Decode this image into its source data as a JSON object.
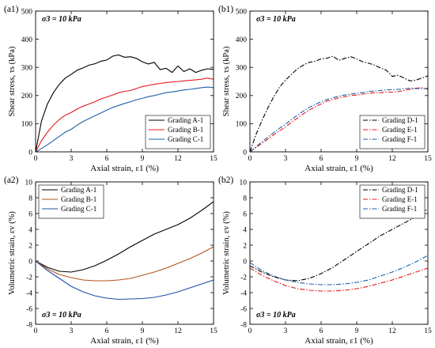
{
  "chart_data": [
    {
      "id": "a1",
      "type": "line",
      "panel_label": "(a1)",
      "annotation": "σ3 = 10 kPa",
      "xlabel": "Axial strain, ε1 (%)",
      "ylabel": "Shear stress, τs (kPa)",
      "xlim": [
        0,
        15
      ],
      "ylim": [
        0,
        500
      ],
      "xticks": [
        "0",
        "3",
        "6",
        "9",
        "12",
        "15"
      ],
      "yticks": [
        "0",
        "100",
        "200",
        "300",
        "400",
        "500"
      ],
      "legend_position": "bottom-right",
      "series": [
        {
          "name": "Grading A-1",
          "color": "#000000",
          "dash": "solid",
          "x": [
            0,
            0.5,
            1,
            1.5,
            2,
            2.5,
            3,
            3.5,
            4,
            4.5,
            5,
            5.5,
            6,
            6.5,
            7,
            7.5,
            8,
            8.5,
            9,
            9.5,
            10,
            10.5,
            11,
            11.5,
            12,
            12.5,
            13,
            13.5,
            14,
            14.5,
            15
          ],
          "y": [
            0,
            110,
            170,
            210,
            240,
            262,
            275,
            290,
            298,
            308,
            313,
            322,
            326,
            340,
            344,
            336,
            338,
            332,
            320,
            312,
            318,
            292,
            297,
            282,
            305,
            285,
            295,
            282,
            290,
            295,
            293
          ]
        },
        {
          "name": "Grading B-1",
          "color": "#e41a1c",
          "dash": "solid",
          "x": [
            0,
            0.5,
            1,
            1.5,
            2,
            2.5,
            3,
            3.5,
            4,
            4.5,
            5,
            5.5,
            6,
            6.5,
            7,
            7.5,
            8,
            8.5,
            9,
            9.5,
            10,
            10.5,
            11,
            11.5,
            12,
            12.5,
            13,
            13.5,
            14,
            14.5,
            15
          ],
          "y": [
            0,
            40,
            70,
            95,
            115,
            130,
            140,
            152,
            162,
            170,
            178,
            188,
            195,
            202,
            210,
            215,
            218,
            225,
            232,
            236,
            240,
            243,
            246,
            248,
            250,
            252,
            254,
            256,
            258,
            262,
            258
          ]
        },
        {
          "name": "Grading C-1",
          "color": "#1f5fa8",
          "dash": "solid",
          "x": [
            0,
            0.5,
            1,
            1.5,
            2,
            2.5,
            3,
            3.5,
            4,
            4.5,
            5,
            5.5,
            6,
            6.5,
            7,
            7.5,
            8,
            8.5,
            9,
            9.5,
            10,
            10.5,
            11,
            11.5,
            12,
            12.5,
            13,
            13.5,
            14,
            14.5,
            15
          ],
          "y": [
            0,
            12,
            25,
            40,
            55,
            70,
            80,
            95,
            108,
            118,
            128,
            138,
            148,
            158,
            165,
            172,
            178,
            185,
            190,
            196,
            200,
            205,
            210,
            213,
            216,
            220,
            222,
            225,
            228,
            230,
            228
          ]
        }
      ]
    },
    {
      "id": "b1",
      "type": "line",
      "panel_label": "(b1)",
      "annotation": "σ3 = 10 kPa",
      "xlabel": "Axial strain, ε1 (%)",
      "ylabel": "Shear stress, τs (kPa)",
      "xlim": [
        0,
        15
      ],
      "ylim": [
        0,
        500
      ],
      "xticks": [
        "0",
        "3",
        "6",
        "9",
        "12",
        "15"
      ],
      "yticks": [
        "0",
        "100",
        "200",
        "300",
        "400",
        "500"
      ],
      "legend_position": "bottom-right",
      "series": [
        {
          "name": "Grading D-1",
          "color": "#000000",
          "dash": "dashdot",
          "x": [
            0,
            0.5,
            1,
            1.5,
            2,
            2.5,
            3,
            3.5,
            4,
            4.5,
            5,
            5.5,
            6,
            6.5,
            7,
            7.5,
            8,
            8.5,
            9,
            9.5,
            10,
            10.5,
            11,
            11.5,
            12,
            12.5,
            13,
            13.5,
            14,
            14.5,
            15
          ],
          "y": [
            0,
            60,
            110,
            155,
            195,
            230,
            255,
            275,
            295,
            308,
            318,
            322,
            330,
            333,
            340,
            325,
            332,
            338,
            330,
            320,
            315,
            308,
            298,
            290,
            268,
            272,
            262,
            252,
            255,
            262,
            270
          ]
        },
        {
          "name": "Grading E-1",
          "color": "#e41a1c",
          "dash": "dashdot",
          "x": [
            0,
            0.5,
            1,
            1.5,
            2,
            2.5,
            3,
            3.5,
            4,
            4.5,
            5,
            5.5,
            6,
            6.5,
            7,
            7.5,
            8,
            8.5,
            9,
            9.5,
            10,
            10.5,
            11,
            11.5,
            12,
            12.5,
            13,
            13.5,
            14,
            14.5,
            15
          ],
          "y": [
            0,
            15,
            30,
            45,
            60,
            75,
            88,
            105,
            120,
            135,
            148,
            160,
            170,
            180,
            186,
            192,
            196,
            200,
            202,
            205,
            208,
            210,
            210,
            212,
            212,
            214,
            218,
            222,
            226,
            228,
            222
          ]
        },
        {
          "name": "Grading F-1",
          "color": "#1f5fa8",
          "dash": "dashdot",
          "x": [
            0,
            0.5,
            1,
            1.5,
            2,
            2.5,
            3,
            3.5,
            4,
            4.5,
            5,
            5.5,
            6,
            6.5,
            7,
            7.5,
            8,
            8.5,
            9,
            9.5,
            10,
            10.5,
            11,
            11.5,
            12,
            12.5,
            13,
            13.5,
            14,
            14.5,
            15
          ],
          "y": [
            0,
            18,
            35,
            52,
            68,
            84,
            98,
            115,
            130,
            145,
            158,
            168,
            178,
            186,
            192,
            198,
            202,
            205,
            208,
            211,
            214,
            216,
            218,
            220,
            221,
            222,
            224,
            226,
            225,
            224,
            226
          ]
        }
      ]
    },
    {
      "id": "a2",
      "type": "line",
      "panel_label": "(a2)",
      "annotation": "σ3 = 10 kPa",
      "xlabel": "Axial strain, ε1 (%)",
      "ylabel": "Volumetric strain, εv (%)",
      "xlim": [
        0,
        15
      ],
      "ylim": [
        -8,
        10
      ],
      "xticks": [
        "0",
        "3",
        "6",
        "9",
        "12",
        "15"
      ],
      "yticks": [
        "-8",
        "-6",
        "-4",
        "-2",
        "0",
        "2",
        "4",
        "6",
        "8",
        "10"
      ],
      "legend_position": "top-left",
      "series": [
        {
          "name": "Grading A-1",
          "color": "#000000",
          "dash": "solid",
          "x": [
            0,
            1,
            2,
            3,
            4,
            5,
            6,
            7,
            8,
            9,
            10,
            11,
            12,
            13,
            14,
            15
          ],
          "y": [
            0,
            -0.8,
            -1.3,
            -1.4,
            -1.1,
            -0.6,
            0.1,
            0.9,
            1.8,
            2.6,
            3.4,
            4.0,
            4.6,
            5.4,
            6.4,
            7.5
          ]
        },
        {
          "name": "Grading B-1",
          "color": "#b5531e",
          "dash": "solid",
          "x": [
            0,
            1,
            2,
            3,
            4,
            5,
            6,
            7,
            8,
            9,
            10,
            11,
            12,
            13,
            14,
            15
          ],
          "y": [
            0,
            -1.0,
            -1.7,
            -2.1,
            -2.4,
            -2.5,
            -2.5,
            -2.4,
            -2.2,
            -1.8,
            -1.4,
            -0.9,
            -0.3,
            0.3,
            1.0,
            1.8
          ]
        },
        {
          "name": "Grading C-1",
          "color": "#1f4fa8",
          "dash": "solid",
          "x": [
            0,
            1,
            2,
            3,
            4,
            5,
            6,
            7,
            8,
            9,
            10,
            11,
            12,
            13,
            14,
            15
          ],
          "y": [
            0,
            -1.2,
            -2.2,
            -3.2,
            -3.9,
            -4.4,
            -4.7,
            -4.85,
            -4.8,
            -4.75,
            -4.6,
            -4.3,
            -3.9,
            -3.4,
            -2.9,
            -2.4
          ]
        }
      ]
    },
    {
      "id": "b2",
      "type": "line",
      "panel_label": "(b2)",
      "annotation": "σ3 = 10 kPa",
      "xlabel": "Axial strain, ε1 (%)",
      "ylabel": "Volumetric strain, εv (%)",
      "xlim": [
        0,
        15
      ],
      "ylim": [
        -8,
        10
      ],
      "xticks": [
        "0",
        "3",
        "6",
        "9",
        "12",
        "15"
      ],
      "yticks": [
        "-8",
        "-6",
        "-4",
        "-2",
        "0",
        "2",
        "4",
        "6",
        "8",
        "10"
      ],
      "legend_position": "top-right",
      "series": [
        {
          "name": "Grading D-1",
          "color": "#000000",
          "dash": "dashdot",
          "x": [
            0,
            1,
            2,
            3,
            4,
            5,
            6,
            7,
            8,
            9,
            10,
            11,
            12,
            13,
            14,
            15
          ],
          "y": [
            -0.6,
            -1.4,
            -2.0,
            -2.4,
            -2.5,
            -2.2,
            -1.6,
            -0.8,
            0.2,
            1.2,
            2.2,
            3.2,
            4.0,
            4.8,
            5.6,
            6.6
          ]
        },
        {
          "name": "Grading E-1",
          "color": "#e41a1c",
          "dash": "dashdot",
          "x": [
            0,
            1,
            2,
            3,
            4,
            5,
            6,
            7,
            8,
            9,
            10,
            11,
            12,
            13,
            14,
            15
          ],
          "y": [
            -0.9,
            -1.8,
            -2.5,
            -3.1,
            -3.5,
            -3.7,
            -3.8,
            -3.8,
            -3.7,
            -3.5,
            -3.2,
            -2.8,
            -2.4,
            -1.9,
            -1.4,
            -0.9
          ]
        },
        {
          "name": "Grading F-1",
          "color": "#1f5fa8",
          "dash": "dashdot",
          "x": [
            0,
            1,
            2,
            3,
            4,
            5,
            6,
            7,
            8,
            9,
            10,
            11,
            12,
            13,
            14,
            15
          ],
          "y": [
            -0.2,
            -1.2,
            -1.9,
            -2.4,
            -2.7,
            -2.9,
            -3.0,
            -3.0,
            -2.9,
            -2.7,
            -2.4,
            -1.9,
            -1.4,
            -0.8,
            -0.1,
            0.7
          ]
        }
      ]
    }
  ]
}
